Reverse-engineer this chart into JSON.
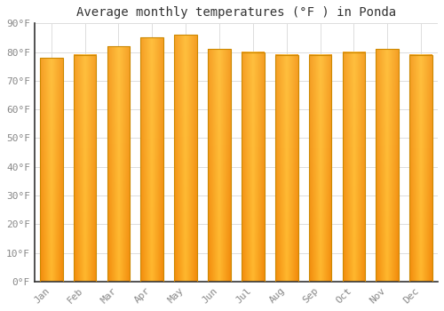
{
  "title": "Average monthly temperatures (°F ) in Ponda",
  "months": [
    "Jan",
    "Feb",
    "Mar",
    "Apr",
    "May",
    "Jun",
    "Jul",
    "Aug",
    "Sep",
    "Oct",
    "Nov",
    "Dec"
  ],
  "values": [
    78,
    79,
    82,
    85,
    86,
    81,
    80,
    79,
    79,
    80,
    81,
    79
  ],
  "ylim": [
    0,
    90
  ],
  "yticks": [
    0,
    10,
    20,
    30,
    40,
    50,
    60,
    70,
    80,
    90
  ],
  "bar_color_center": "#FFB727",
  "bar_color_edge": "#F08000",
  "bar_color_highlight": "#FFDD80",
  "bar_border_color": "#CC8800",
  "background_color": "#FFFFFF",
  "grid_color": "#DDDDDD",
  "title_fontsize": 10,
  "tick_fontsize": 8,
  "tick_color": "#888888",
  "title_color": "#333333",
  "figure_width": 5.0,
  "figure_height": 3.5,
  "dpi": 100
}
